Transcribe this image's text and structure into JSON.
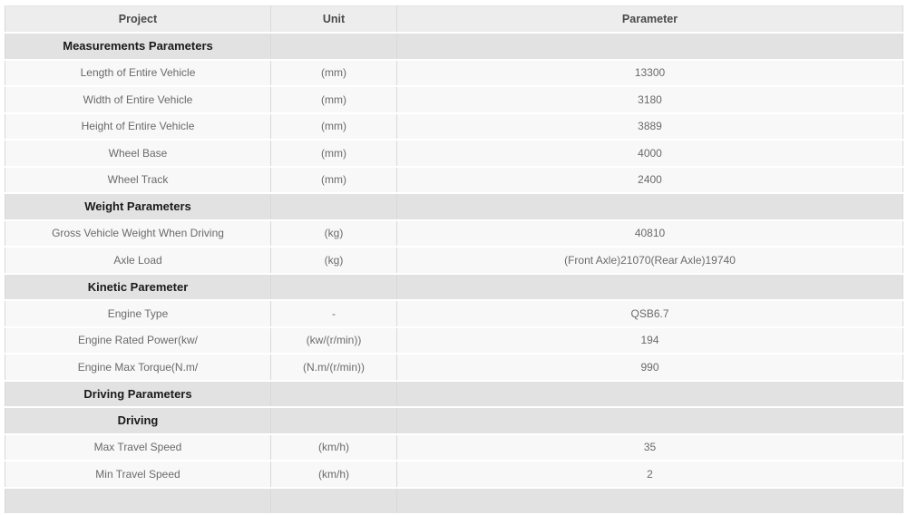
{
  "colors": {
    "header_row_bg": "#ededed",
    "section_row_bg": "#e2e2e2",
    "data_row_bg": "#f8f8f8",
    "grid_border": "#d9d9d9",
    "row_separator": "#ffffff",
    "header_text": "#4a4a4a",
    "section_text": "#1a1a1a",
    "data_text": "#6a6a6a"
  },
  "table": {
    "columns": [
      {
        "label": "Project"
      },
      {
        "label": "Unit"
      },
      {
        "label": "Parameter"
      }
    ],
    "rows": [
      {
        "type": "section",
        "project": "Measurements Parameters",
        "unit": "",
        "parameter": ""
      },
      {
        "type": "data",
        "project": "Length of Entire Vehicle",
        "unit": "(mm)",
        "parameter": "13300"
      },
      {
        "type": "data",
        "project": "Width of Entire Vehicle",
        "unit": "(mm)",
        "parameter": "3180"
      },
      {
        "type": "data",
        "project": "Height of Entire Vehicle",
        "unit": "(mm)",
        "parameter": "3889"
      },
      {
        "type": "data",
        "project": "Wheel Base",
        "unit": "(mm)",
        "parameter": "4000"
      },
      {
        "type": "data",
        "project": "Wheel Track",
        "unit": "(mm)",
        "parameter": "2400"
      },
      {
        "type": "section",
        "project": "Weight Parameters",
        "unit": "",
        "parameter": ""
      },
      {
        "type": "data",
        "project": "Gross Vehicle Weight When Driving",
        "unit": "(kg)",
        "parameter": "40810"
      },
      {
        "type": "data",
        "project": "Axle Load",
        "unit": "(kg)",
        "parameter": "(Front Axle)21070(Rear Axle)19740"
      },
      {
        "type": "section",
        "project": "Kinetic Paremeter",
        "unit": "",
        "parameter": ""
      },
      {
        "type": "data",
        "project": "Engine Type",
        "unit": "-",
        "parameter": "QSB6.7"
      },
      {
        "type": "data",
        "project": "Engine Rated Power(kw/",
        "unit": "(kw/(r/min))",
        "parameter": "194"
      },
      {
        "type": "data",
        "project": "Engine Max Torque(N.m/",
        "unit": "(N.m/(r/min))",
        "parameter": "990"
      },
      {
        "type": "section",
        "project": "Driving Parameters",
        "unit": "",
        "parameter": ""
      },
      {
        "type": "section",
        "project": "Driving",
        "unit": "",
        "parameter": ""
      },
      {
        "type": "data",
        "project": "Max Travel Speed",
        "unit": "(km/h)",
        "parameter": "35"
      },
      {
        "type": "data",
        "project": "Min Travel Speed",
        "unit": "(km/h)",
        "parameter": "2"
      },
      {
        "type": "section",
        "project": "",
        "unit": "",
        "parameter": ""
      }
    ]
  }
}
